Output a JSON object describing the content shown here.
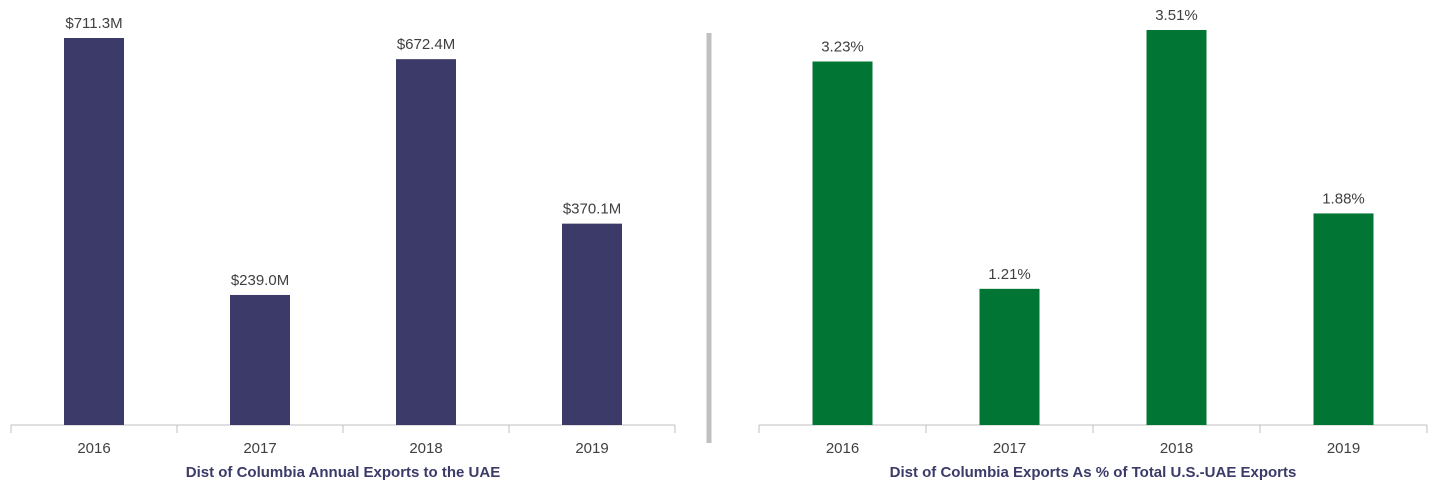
{
  "chart_data": [
    {
      "type": "bar",
      "title": "Dist of Columbia Annual Exports to the UAE",
      "categories": [
        "2016",
        "2017",
        "2018",
        "2019"
      ],
      "values": [
        711.3,
        239.0,
        672.4,
        370.1
      ],
      "value_labels": [
        "$711.3M",
        "$239.0M",
        "$672.4M",
        "$370.1M"
      ],
      "color": "#3b3a68"
    },
    {
      "type": "bar",
      "title": "Dist of Columbia Exports As % of Total U.S.-UAE Exports",
      "categories": [
        "2016",
        "2017",
        "2018",
        "2019"
      ],
      "values": [
        3.23,
        1.21,
        3.51,
        1.88
      ],
      "value_labels": [
        "3.23%",
        "1.21%",
        "3.51%",
        "1.88%"
      ],
      "color": "#007534"
    }
  ]
}
